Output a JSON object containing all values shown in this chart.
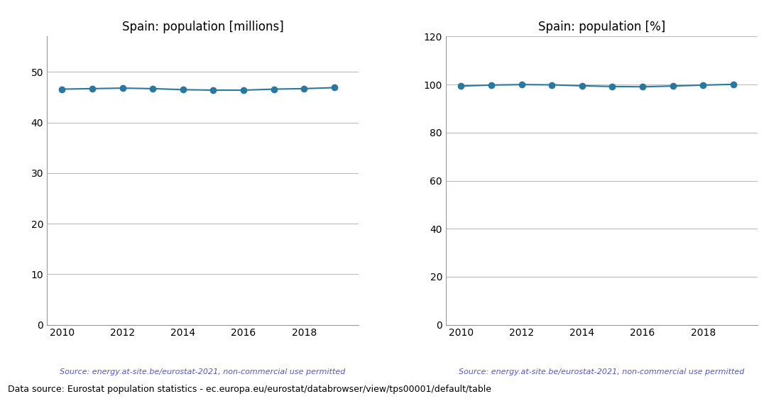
{
  "years": [
    2010,
    2011,
    2012,
    2013,
    2014,
    2015,
    2016,
    2017,
    2018,
    2019
  ],
  "population_millions": [
    46.6,
    46.7,
    46.8,
    46.7,
    46.5,
    46.4,
    46.4,
    46.6,
    46.7,
    46.9
  ],
  "population_pct": [
    99.4,
    99.8,
    100.0,
    99.9,
    99.5,
    99.2,
    99.1,
    99.4,
    99.8,
    100.1
  ],
  "title_left": "Spain: population [millions]",
  "title_right": "Spain: population [%]",
  "ylim_left": [
    0,
    57
  ],
  "ylim_right": [
    0,
    120
  ],
  "yticks_left": [
    0,
    10,
    20,
    30,
    40,
    50
  ],
  "yticks_right": [
    0,
    20,
    40,
    60,
    80,
    100,
    120
  ],
  "xticks": [
    2010,
    2012,
    2014,
    2016,
    2018
  ],
  "line_color": "#2878a0",
  "marker": "o",
  "markersize": 6,
  "source_text": "Source: energy.at-site.be/eurostat-2021, non-commercial use permitted",
  "source_color": "#5555cc",
  "footer_text": "Data source: Eurostat population statistics - ec.europa.eu/eurostat/databrowser/view/tps00001/default/table",
  "footer_color": "#000000",
  "grid_color": "#bbbbbb",
  "background_color": "#ffffff"
}
